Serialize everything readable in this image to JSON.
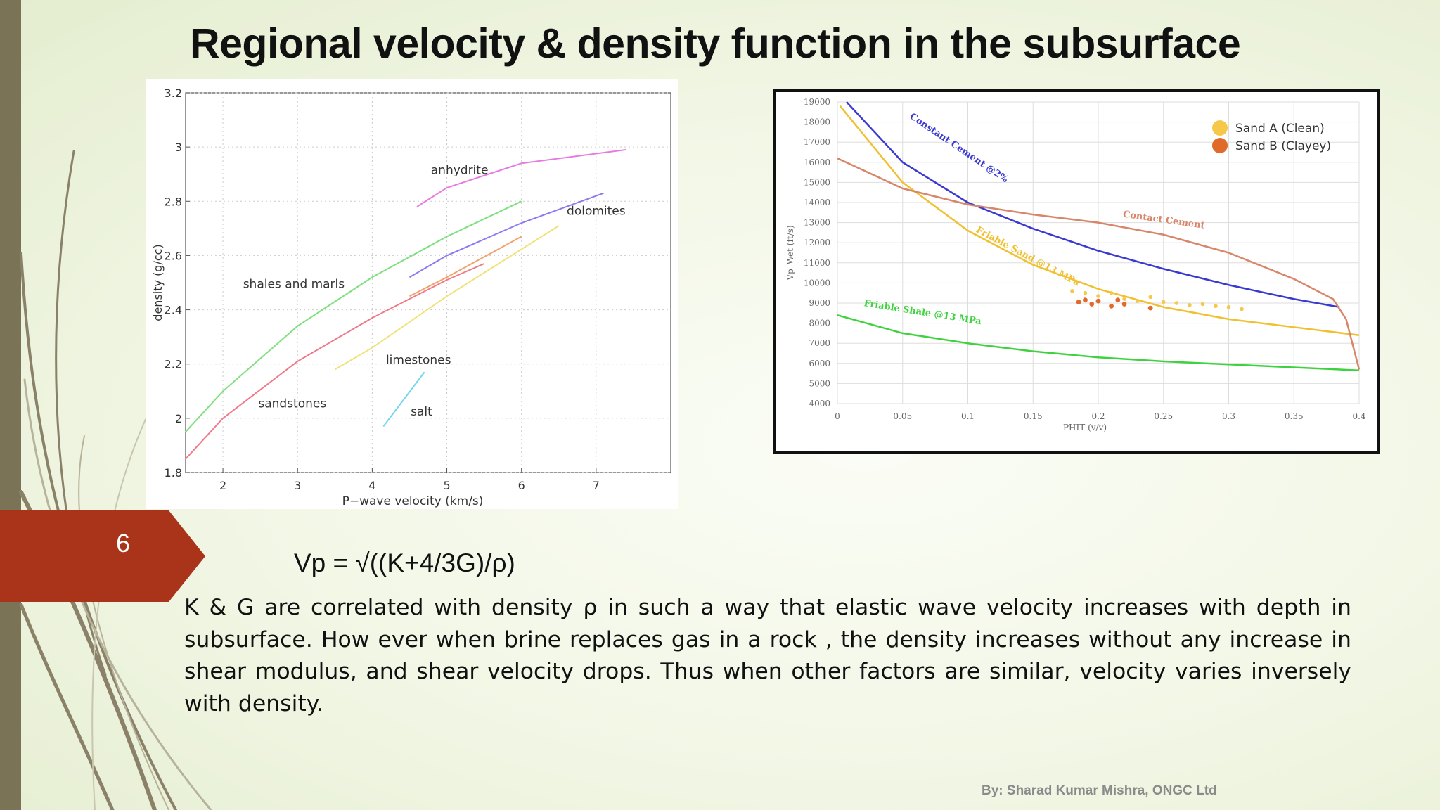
{
  "title": "Regional velocity & density function in the subsurface",
  "slide_number": "6",
  "formula": "Vp = √((K+4/3G)/ρ)",
  "body_text": "K & G  are correlated with density ρ  in such a way that elastic wave velocity increases with depth in subsurface. How ever when brine replaces gas in a rock , the density increases without any increase in shear modulus, and shear velocity drops. Thus when other factors are similar, velocity varies inversely with density.",
  "footer": "By: Sharad Kumar Mishra, ONGC Ltd",
  "colors": {
    "accent": "#a9341a",
    "side_bar": "#7a7355"
  },
  "chart_data": [
    {
      "type": "line",
      "title": "",
      "xlabel": "P−wave velocity (km/s)",
      "ylabel": "density (g/cc)",
      "xlim": [
        1.5,
        8
      ],
      "ylim": [
        1.8,
        3.2
      ],
      "x_ticks": [
        2,
        3,
        4,
        5,
        6,
        7
      ],
      "y_ticks": [
        1.8,
        2,
        2.2,
        2.4,
        2.6,
        2.8,
        3,
        3.2
      ],
      "y_tick_labels": [
        "1.8",
        "2",
        "2.2",
        "2.4",
        "2.6",
        "2.8",
        "3",
        "3.2"
      ],
      "grid": true,
      "series": [
        {
          "name": "shales and marls",
          "color": "#7fe07f",
          "x": [
            1.5,
            2,
            3,
            4,
            5,
            6
          ],
          "y": [
            1.95,
            2.1,
            2.34,
            2.52,
            2.67,
            2.8
          ]
        },
        {
          "name": "sandstones",
          "color": "#f07a8a",
          "x": [
            1.5,
            2,
            3,
            4,
            5,
            5.5
          ],
          "y": [
            1.85,
            2.0,
            2.21,
            2.37,
            2.51,
            2.57
          ]
        },
        {
          "name": "limestones",
          "color": "#f3a26a",
          "x": [
            4.5,
            5,
            6
          ],
          "y": [
            2.45,
            2.52,
            2.67
          ]
        },
        {
          "name": "limestones (yellow)",
          "color": "#f0e27a",
          "x": [
            3.5,
            4,
            5,
            6.5
          ],
          "y": [
            2.18,
            2.26,
            2.45,
            2.71
          ]
        },
        {
          "name": "dolomites",
          "color": "#8a7cf0",
          "x": [
            4.5,
            5,
            6,
            7.1
          ],
          "y": [
            2.52,
            2.6,
            2.72,
            2.83
          ]
        },
        {
          "name": "anhydrite",
          "color": "#e77ae0",
          "x": [
            4.6,
            5,
            6,
            7.4
          ],
          "y": [
            2.78,
            2.85,
            2.94,
            2.99
          ]
        },
        {
          "name": "salt",
          "color": "#72d7e8",
          "x": [
            4.15,
            4.7
          ],
          "y": [
            1.97,
            2.17
          ]
        }
      ],
      "annotations": [
        {
          "text": "anhydrite",
          "x": 5.17,
          "y": 2.9
        },
        {
          "text": "dolomites",
          "x": 7.0,
          "y": 2.75
        },
        {
          "text": "shales and marls",
          "x": 2.95,
          "y": 2.48
        },
        {
          "text": "limestones",
          "x": 4.62,
          "y": 2.2
        },
        {
          "text": "sandstones",
          "x": 2.93,
          "y": 2.04
        },
        {
          "text": "salt",
          "x": 4.66,
          "y": 2.01
        }
      ]
    },
    {
      "type": "scatter",
      "title": "",
      "xlabel": "PHIT (v/v)",
      "ylabel": "Vp_Wet (ft/s)",
      "xlim": [
        0,
        0.4
      ],
      "ylim": [
        4000,
        19000
      ],
      "x_ticks": [
        0,
        0.05,
        0.1,
        0.15,
        0.2,
        0.25,
        0.3,
        0.35,
        0.4
      ],
      "x_tick_labels": [
        "0",
        "0.05",
        "0.1",
        "0.15",
        "0.2",
        "0.25",
        "0.3",
        "0.35",
        "0.4"
      ],
      "y_ticks": [
        4000,
        5000,
        6000,
        7000,
        8000,
        9000,
        10000,
        11000,
        12000,
        13000,
        14000,
        15000,
        16000,
        17000,
        18000,
        19000
      ],
      "grid": true,
      "legend": [
        "Sand A (Clean)",
        "Sand B (Clayey)"
      ],
      "legend_position": "top-right",
      "series": [
        {
          "name": "Constant Cement @2%",
          "color": "#3a3ad0",
          "x": [
            0.007,
            0.05,
            0.1,
            0.15,
            0.2,
            0.25,
            0.3,
            0.35,
            0.385
          ],
          "y": [
            19000,
            16000,
            14000,
            12700,
            11600,
            10700,
            9900,
            9200,
            8800
          ]
        },
        {
          "name": "Friable Sand @13 MPa",
          "color": "#f0c030",
          "x": [
            0.002,
            0.05,
            0.1,
            0.15,
            0.2,
            0.25,
            0.3,
            0.35,
            0.4
          ],
          "y": [
            18800,
            15000,
            12600,
            10900,
            9700,
            8800,
            8200,
            7800,
            7400
          ]
        },
        {
          "name": "Contact Cement",
          "color": "#d8866a",
          "x": [
            0,
            0.05,
            0.1,
            0.15,
            0.2,
            0.25,
            0.3,
            0.35,
            0.38,
            0.39,
            0.4
          ],
          "y": [
            16200,
            14700,
            13900,
            13400,
            13000,
            12400,
            11500,
            10200,
            9200,
            8200,
            5700
          ]
        },
        {
          "name": "Friable Shale @13 MPa",
          "color": "#3fd23f",
          "x": [
            0,
            0.05,
            0.1,
            0.15,
            0.2,
            0.25,
            0.3,
            0.35,
            0.4
          ],
          "y": [
            8400,
            7500,
            7000,
            6600,
            6300,
            6100,
            5950,
            5800,
            5650
          ]
        },
        {
          "name": "Sand A (Clean)",
          "color": "#f5c84a",
          "x": [
            0.18,
            0.19,
            0.2,
            0.21,
            0.22,
            0.23,
            0.24,
            0.25,
            0.26,
            0.27,
            0.28,
            0.29,
            0.3,
            0.31
          ],
          "y": [
            9600,
            9500,
            9350,
            9500,
            9200,
            9100,
            9300,
            9050,
            9000,
            8900,
            8950,
            8850,
            8800,
            8700
          ]
        },
        {
          "name": "Sand B (Clayey)",
          "color": "#e06a2a",
          "x": [
            0.185,
            0.19,
            0.195,
            0.2,
            0.21,
            0.215,
            0.22,
            0.24
          ],
          "y": [
            9050,
            9150,
            8950,
            9100,
            8850,
            9150,
            8950,
            8750
          ]
        }
      ],
      "annotations": [
        {
          "text": "Constant Cement @2%",
          "x": 0.092,
          "y": 16600,
          "color": "#3a3ad0"
        },
        {
          "text": "Contact Cement",
          "x": 0.25,
          "y": 13000,
          "color": "#d8866a"
        },
        {
          "text": "Friable Sand @13 MPa",
          "x": 0.145,
          "y": 11200,
          "color": "#f0c030"
        },
        {
          "text": "Friable Shale @13 MPa",
          "x": 0.065,
          "y": 8400,
          "color": "#3fd23f"
        }
      ]
    }
  ]
}
